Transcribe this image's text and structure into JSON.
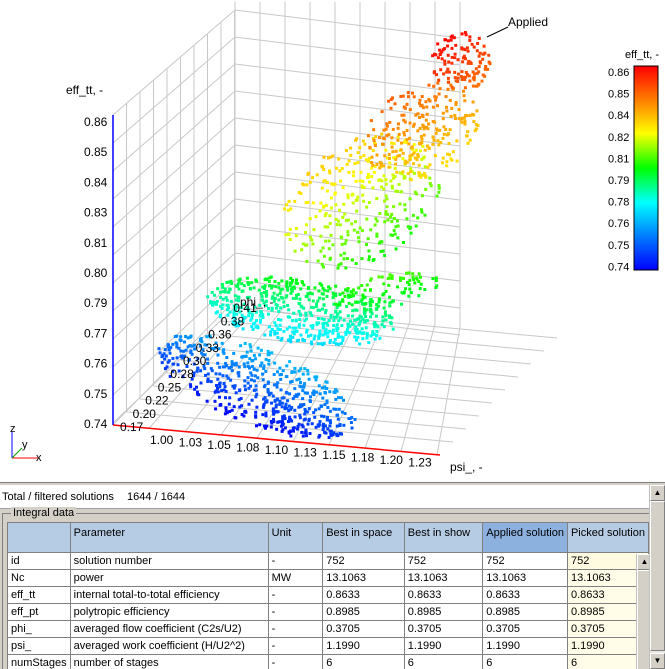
{
  "plot": {
    "z_axis_title": "eff_tt, -",
    "x_axis_title": "psi_, -",
    "y_axis_title": "phi_, -",
    "z_ticks": [
      "0.86",
      "0.85",
      "0.84",
      "0.83",
      "0.81",
      "0.80",
      "0.79",
      "0.77",
      "0.76",
      "0.75",
      "0.74"
    ],
    "x_ticks": [
      "1.00",
      "1.03",
      "1.05",
      "1.08",
      "1.10",
      "1.13",
      "1.15",
      "1.18",
      "1.20",
      "1.23"
    ],
    "y_ticks": [
      "0.17",
      "0.20",
      "0.22",
      "0.25",
      "0.28",
      "0.30",
      "0.33",
      "0.36",
      "0.38",
      "0.41"
    ],
    "annotation": "Applied",
    "triad": {
      "z": "z",
      "y": "y",
      "x": "x"
    }
  },
  "colorbar": {
    "title": "eff_tt, -",
    "ticks": [
      "0.86",
      "0.85",
      "0.84",
      "0.82",
      "0.81",
      "0.79",
      "0.78",
      "0.76",
      "0.75",
      "0.74"
    ],
    "colors": [
      "#ff0000",
      "#ff8000",
      "#ffff00",
      "#00ff00",
      "#00ffff",
      "#0080ff",
      "#0000ff"
    ]
  },
  "summary": {
    "label": "Total /  filtered solutions",
    "value": "1644 / 1644"
  },
  "integral": {
    "title": "Integral data",
    "columns": [
      "Parameter",
      "Unit",
      "Best in space",
      "Best in show",
      "Applied solution",
      "Picked solution"
    ],
    "rows": [
      {
        "key": "id",
        "param": "solution number",
        "unit": "-",
        "v": [
          "752",
          "752",
          "752",
          "752"
        ]
      },
      {
        "key": "Nc",
        "param": "power",
        "unit": "MW",
        "v": [
          "13.1063",
          "13.1063",
          "13.1063",
          "13.1063"
        ]
      },
      {
        "key": "eff_tt",
        "param": "internal total-to-total efficiency",
        "unit": "-",
        "v": [
          "0.8633",
          "0.8633",
          "0.8633",
          "0.8633"
        ]
      },
      {
        "key": "eff_pt",
        "param": "polytropic efficiency",
        "unit": "-",
        "v": [
          "0.8985",
          "0.8985",
          "0.8985",
          "0.8985"
        ]
      },
      {
        "key": "phi_",
        "param": "averaged flow coefficient (C2s/U2)",
        "unit": "-",
        "v": [
          "0.3705",
          "0.3705",
          "0.3705",
          "0.3705"
        ]
      },
      {
        "key": "psi_",
        "param": "averaged work coefficient (H/U2^2)",
        "unit": "-",
        "v": [
          "1.1990",
          "1.1990",
          "1.1990",
          "1.1990"
        ]
      },
      {
        "key": "numStages",
        "param": "number of stages",
        "unit": "-",
        "v": [
          "6",
          "6",
          "6",
          "6"
        ]
      }
    ]
  },
  "scrollbar_arrows": {
    "up": "▲",
    "down": "▼"
  }
}
